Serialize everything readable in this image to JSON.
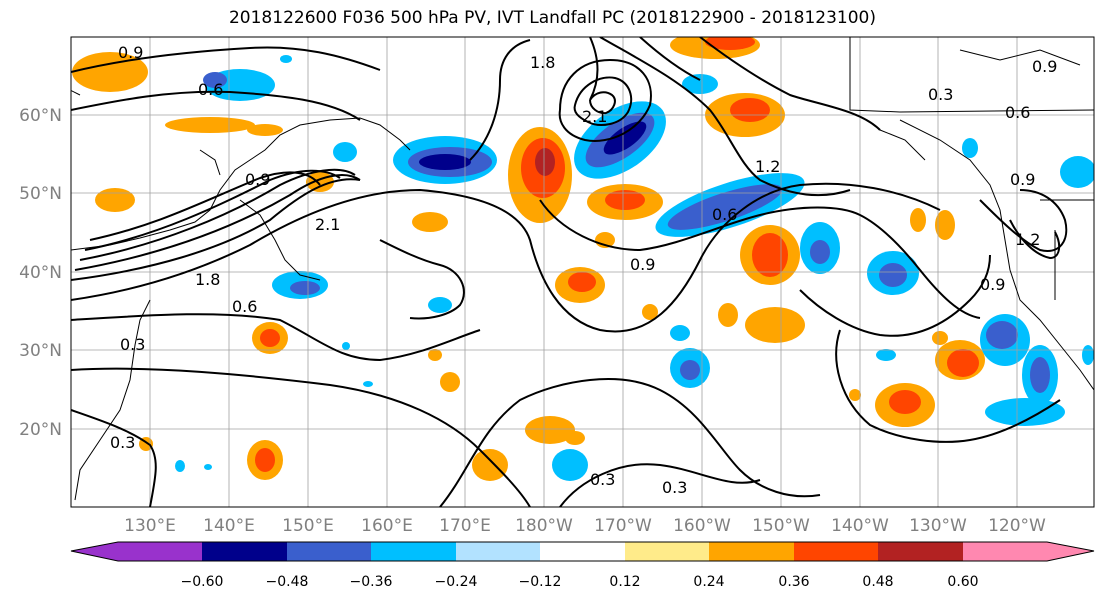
{
  "title": "2018122600 F036 500 hPa PV, IVT Landfall PC (2018122900 - 2018123100)",
  "map": {
    "lat_labels": [
      "60°N",
      "50°N",
      "40°N",
      "30°N",
      "20°N"
    ],
    "lon_labels": [
      "130°E",
      "140°E",
      "150°E",
      "160°E",
      "170°E",
      "180°W",
      "170°W",
      "160°W",
      "150°W",
      "140°W",
      "130°W",
      "120°W"
    ],
    "contour_labels": [
      "0.9",
      "0.6",
      "0.3",
      "1.8",
      "2.1",
      "0.9",
      "0.6",
      "0.3",
      "1.2",
      "0.9",
      "0.6",
      "0.9",
      "1.2",
      "0.3",
      "0.3",
      "0.9",
      "0.6",
      "0.3",
      "1.8",
      "2.1",
      "0.9"
    ]
  },
  "colorbar": {
    "ticks": [
      "−0.60",
      "−0.48",
      "−0.36",
      "−0.24",
      "−0.12",
      "0.12",
      "0.24",
      "0.36",
      "0.48",
      "0.60"
    ],
    "colors": [
      "#9932CC",
      "#00008B",
      "#3A5FCD",
      "#00BFFF",
      "#B2E2FF",
      "#FFFFFF",
      "#FFEB8A",
      "#FFA500",
      "#FF4500",
      "#B22222",
      "#FF88B0"
    ]
  }
}
